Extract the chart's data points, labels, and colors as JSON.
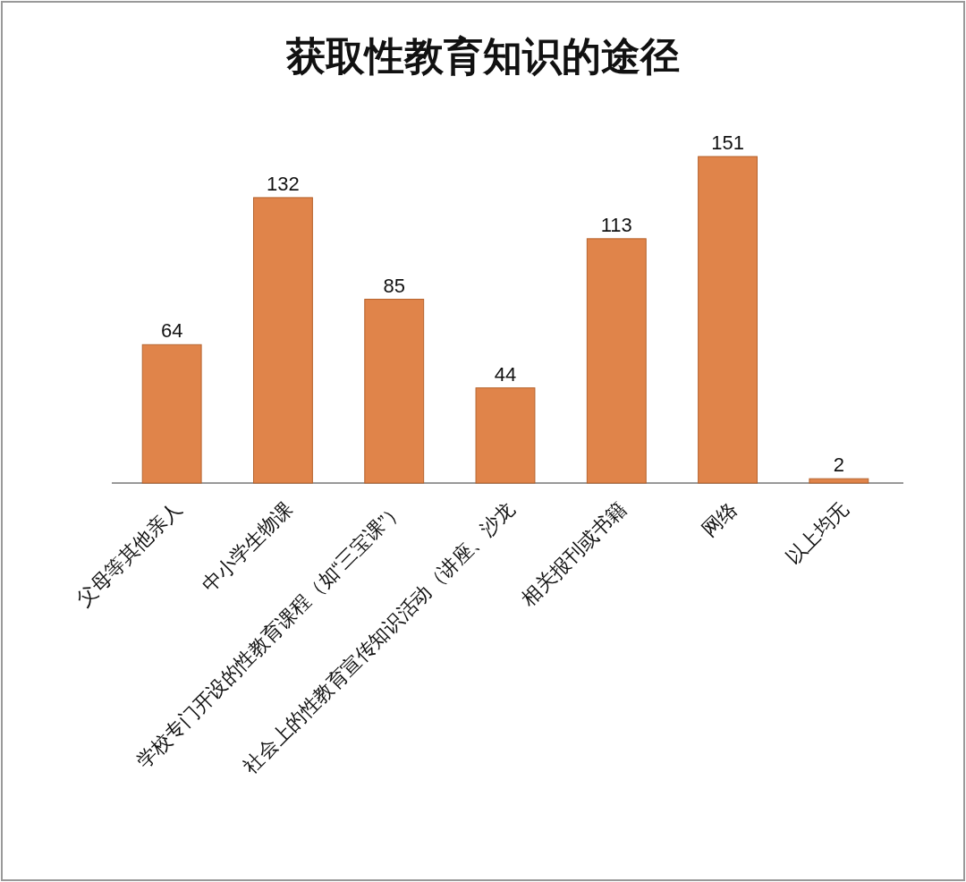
{
  "chart_data": {
    "type": "bar",
    "title": "获取性教育知识的途径",
    "categories": [
      "父母等其他亲人",
      "中小学生物课",
      "学校专门开设的性教育课程（如“三宝课”）",
      "社会上的性教育宣传知识活动（讲座、沙龙",
      "相关报刊或书籍",
      "网络",
      "以上均无"
    ],
    "values": [
      64,
      132,
      85,
      44,
      113,
      151,
      2
    ],
    "color": "#e0844a",
    "data_labels": true
  }
}
